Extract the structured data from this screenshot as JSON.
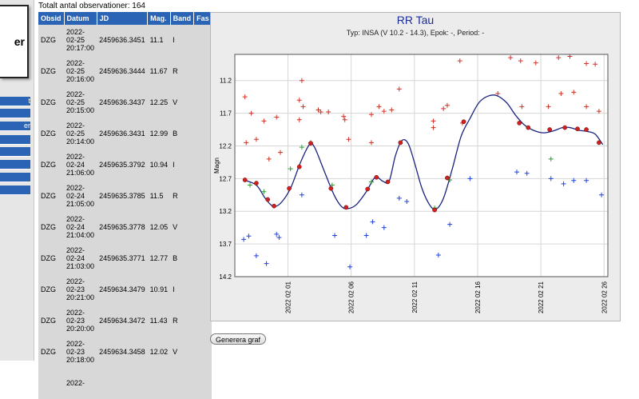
{
  "header": {
    "total_label": "Totalt antal observationer: 164"
  },
  "logo": {
    "text": "er"
  },
  "nav": {
    "items": [
      {
        "label": "t"
      },
      {
        "label": ""
      },
      {
        "label": "er"
      },
      {
        "label": ""
      },
      {
        "label": ""
      },
      {
        "label": ""
      },
      {
        "label": ""
      },
      {
        "label": ""
      }
    ]
  },
  "table": {
    "columns": [
      "Obsid",
      "Datum",
      "JD",
      "Mag.",
      "Band",
      "Fas"
    ],
    "rows": [
      {
        "obsid": "DZG",
        "date": "2022-02-25 20:17:00",
        "jd": "2459636.3451",
        "mag": "11.1",
        "band": "I",
        "fas": ""
      },
      {
        "obsid": "DZG",
        "date": "2022-02-25 20:16:00",
        "jd": "2459636.3444",
        "mag": "11.67",
        "band": "R",
        "fas": ""
      },
      {
        "obsid": "DZG",
        "date": "2022-02-25 20:15:00",
        "jd": "2459636.3437",
        "mag": "12.25",
        "band": "V",
        "fas": ""
      },
      {
        "obsid": "DZG",
        "date": "2022-02-25 20:14:00",
        "jd": "2459636.3431",
        "mag": "12.99",
        "band": "B",
        "fas": ""
      },
      {
        "obsid": "DZG",
        "date": "2022-02-24 21:06:00",
        "jd": "2459635.3792",
        "mag": "10.94",
        "band": "I",
        "fas": ""
      },
      {
        "obsid": "DZG",
        "date": "2022-02-24 21:05:00",
        "jd": "2459635.3785",
        "mag": "11.5",
        "band": "R",
        "fas": ""
      },
      {
        "obsid": "DZG",
        "date": "2022-02-24 21:04:00",
        "jd": "2459635.3778",
        "mag": "12.05",
        "band": "V",
        "fas": ""
      },
      {
        "obsid": "DZG",
        "date": "2022-02-24 21:03:00",
        "jd": "2459635.3771",
        "mag": "12.77",
        "band": "B",
        "fas": ""
      },
      {
        "obsid": "DZG",
        "date": "2022-02-23 20:21:00",
        "jd": "2459634.3479",
        "mag": "10.91",
        "band": "I",
        "fas": ""
      },
      {
        "obsid": "DZG",
        "date": "2022-02-23 20:20:00",
        "jd": "2459634.3472",
        "mag": "11.43",
        "band": "R",
        "fas": ""
      },
      {
        "obsid": "DZG",
        "date": "2022-02-23 20:18:00",
        "jd": "2459634.3458",
        "mag": "12.02",
        "band": "V",
        "fas": ""
      },
      {
        "obsid": "",
        "date": "2022-",
        "jd": "",
        "mag": "",
        "band": "",
        "fas": ""
      }
    ]
  },
  "chart_data": {
    "type": "scatter",
    "title": "RR Tau",
    "subtitle": "Typ: INSA (V 10.2 - 14.3), Epok: -, Period: -",
    "ylabel": "Magn",
    "xlabel": "",
    "ylim": [
      14.2,
      10.8
    ],
    "yticks": [
      11.2,
      11.7,
      12.2,
      12.7,
      13.2,
      13.7,
      14.2
    ],
    "xlim": [
      -3.2,
      26.3
    ],
    "xticks": [
      {
        "v": 1,
        "label": "2022 02 01"
      },
      {
        "v": 6,
        "label": "2022 02 06"
      },
      {
        "v": 11,
        "label": "2022 02 11"
      },
      {
        "v": 16,
        "label": "2022 02 16"
      },
      {
        "v": 21,
        "label": "2022 02 21"
      },
      {
        "v": 26,
        "label": "2022 02 26"
      }
    ],
    "colors": {
      "I": "#d9302b",
      "R": "#cc3322",
      "V": "#2e9e2e",
      "B": "#2244dd",
      "fit": "#1a237e",
      "mean": "#cc2222"
    },
    "series": [
      {
        "name": "I",
        "points": [
          [
            -2.4,
            11.45
          ],
          [
            -1.9,
            11.7
          ],
          [
            -0.9,
            11.82
          ],
          [
            0.1,
            11.76
          ],
          [
            1.9,
            11.5
          ],
          [
            2.1,
            11.2
          ],
          [
            3.6,
            11.68
          ],
          [
            5.4,
            11.75
          ],
          [
            5.8,
            12.1
          ],
          [
            7.6,
            11.72
          ],
          [
            8.6,
            11.67
          ],
          [
            9.8,
            11.33
          ],
          [
            12.5,
            11.82
          ],
          [
            13.3,
            11.63
          ],
          [
            14.6,
            10.9
          ],
          [
            18.6,
            10.85
          ],
          [
            19.4,
            10.9
          ],
          [
            20.6,
            10.93
          ],
          [
            22.4,
            10.85
          ],
          [
            23.3,
            10.83
          ],
          [
            24.6,
            10.94
          ],
          [
            25.3,
            10.95
          ]
        ]
      },
      {
        "name": "R",
        "points": [
          [
            -2.3,
            12.15
          ],
          [
            -1.5,
            12.1
          ],
          [
            -0.5,
            12.4
          ],
          [
            0.4,
            12.3
          ],
          [
            1.9,
            11.8
          ],
          [
            2.2,
            11.6
          ],
          [
            3.4,
            11.65
          ],
          [
            4.2,
            11.68
          ],
          [
            5.5,
            11.8
          ],
          [
            7.6,
            12.15
          ],
          [
            8.2,
            11.6
          ],
          [
            9.2,
            11.65
          ],
          [
            12.5,
            11.92
          ],
          [
            13.6,
            11.58
          ],
          [
            14.8,
            11.85
          ],
          [
            17.6,
            11.4
          ],
          [
            19.5,
            11.6
          ],
          [
            21.6,
            11.6
          ],
          [
            22.6,
            11.4
          ],
          [
            23.6,
            11.38
          ],
          [
            24.6,
            11.6
          ],
          [
            25.6,
            11.67
          ]
        ]
      },
      {
        "name": "V",
        "points": [
          [
            -2.0,
            12.8
          ],
          [
            -0.9,
            12.9
          ],
          [
            1.2,
            12.55
          ],
          [
            2.1,
            12.22
          ],
          [
            2.8,
            12.15
          ],
          [
            4.5,
            12.8
          ],
          [
            7.6,
            12.75
          ],
          [
            12.6,
            13.15
          ],
          [
            13.8,
            12.72
          ],
          [
            21.8,
            12.4
          ]
        ]
      },
      {
        "name": "B",
        "points": [
          [
            -2.5,
            13.63
          ],
          [
            -2.1,
            13.58
          ],
          [
            -1.5,
            13.88
          ],
          [
            -0.7,
            14.0
          ],
          [
            0.1,
            13.55
          ],
          [
            0.3,
            13.6
          ],
          [
            2.1,
            12.95
          ],
          [
            4.7,
            13.57
          ],
          [
            5.9,
            14.05
          ],
          [
            7.2,
            13.57
          ],
          [
            7.7,
            13.36
          ],
          [
            8.6,
            13.45
          ],
          [
            9.8,
            13.0
          ],
          [
            10.4,
            13.05
          ],
          [
            12.9,
            13.87
          ],
          [
            13.8,
            13.4
          ],
          [
            15.4,
            12.7
          ],
          [
            19.1,
            12.6
          ],
          [
            19.9,
            12.62
          ],
          [
            21.8,
            12.7
          ],
          [
            22.8,
            12.78
          ],
          [
            23.6,
            12.73
          ],
          [
            24.6,
            12.73
          ],
          [
            25.8,
            12.95
          ]
        ]
      },
      {
        "name": "mean",
        "points": [
          [
            -2.4,
            12.72
          ],
          [
            -1.5,
            12.77
          ],
          [
            -0.6,
            13.02
          ],
          [
            -0.1,
            13.12
          ],
          [
            1.1,
            12.85
          ],
          [
            1.9,
            12.52
          ],
          [
            2.8,
            12.16
          ],
          [
            4.4,
            12.85
          ],
          [
            5.6,
            13.14
          ],
          [
            7.3,
            12.86
          ],
          [
            8.0,
            12.68
          ],
          [
            8.9,
            12.75
          ],
          [
            9.9,
            12.15
          ],
          [
            12.6,
            13.18
          ],
          [
            13.6,
            12.69
          ],
          [
            14.9,
            11.83
          ],
          [
            19.3,
            11.85
          ],
          [
            20.0,
            11.92
          ],
          [
            21.7,
            11.95
          ],
          [
            22.9,
            11.92
          ],
          [
            23.9,
            11.94
          ],
          [
            24.6,
            11.95
          ],
          [
            25.6,
            12.15
          ]
        ]
      },
      {
        "name": "fit",
        "points": [
          [
            -2.5,
            12.72
          ],
          [
            -1.5,
            12.8
          ],
          [
            -0.8,
            13.0
          ],
          [
            -0.2,
            13.12
          ],
          [
            0.4,
            13.08
          ],
          [
            1.2,
            12.85
          ],
          [
            2.0,
            12.45
          ],
          [
            2.7,
            12.18
          ],
          [
            3.1,
            12.22
          ],
          [
            3.8,
            12.55
          ],
          [
            4.6,
            12.93
          ],
          [
            5.2,
            13.12
          ],
          [
            5.7,
            13.16
          ],
          [
            6.4,
            13.1
          ],
          [
            7.2,
            12.9
          ],
          [
            7.9,
            12.68
          ],
          [
            8.5,
            12.74
          ],
          [
            9.0,
            12.74
          ],
          [
            9.5,
            12.35
          ],
          [
            10.0,
            12.12
          ],
          [
            10.5,
            12.16
          ],
          [
            11.0,
            12.45
          ],
          [
            11.6,
            12.85
          ],
          [
            12.2,
            13.1
          ],
          [
            12.7,
            13.17
          ],
          [
            13.3,
            13.0
          ],
          [
            14.0,
            12.55
          ],
          [
            14.7,
            12.05
          ],
          [
            15.4,
            11.78
          ],
          [
            16.1,
            11.54
          ],
          [
            16.8,
            11.44
          ],
          [
            17.5,
            11.43
          ],
          [
            18.3,
            11.54
          ],
          [
            19.0,
            11.73
          ],
          [
            19.7,
            11.88
          ],
          [
            20.4,
            11.96
          ],
          [
            21.2,
            12.0
          ],
          [
            22.0,
            11.97
          ],
          [
            22.7,
            11.92
          ],
          [
            23.3,
            11.92
          ],
          [
            24.0,
            11.96
          ],
          [
            24.7,
            11.98
          ],
          [
            25.3,
            12.02
          ],
          [
            25.9,
            12.18
          ]
        ]
      }
    ]
  },
  "actions": {
    "generate_label": "Generera graf"
  }
}
